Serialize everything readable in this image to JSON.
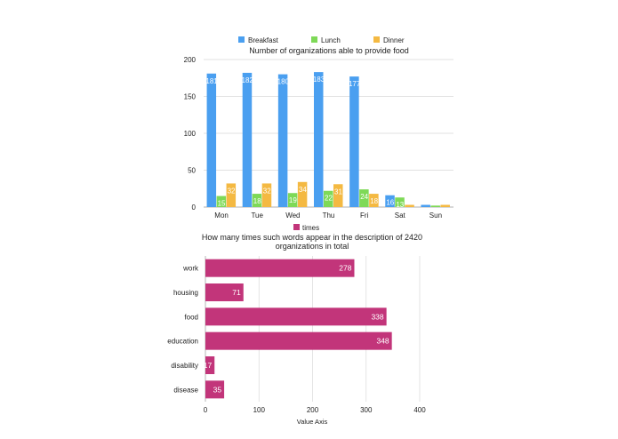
{
  "chart_data": [
    {
      "type": "bar",
      "orientation": "vertical",
      "title": "Number of organizations able to provide food",
      "categories": [
        "Mon",
        "Tue",
        "Wed",
        "Thu",
        "Fri",
        "Sat",
        "Sun"
      ],
      "series": [
        {
          "name": "Breakfast",
          "color": "#4a9ff0",
          "values": [
            181,
            182,
            180,
            183,
            177,
            16,
            3
          ],
          "labels": [
            "181",
            "182",
            "180",
            "183",
            "177",
            "16",
            ""
          ]
        },
        {
          "name": "Lunch",
          "color": "#7ed957",
          "values": [
            15,
            18,
            19,
            22,
            24,
            13,
            2
          ],
          "labels": [
            "15",
            "18",
            "19",
            "22",
            "24",
            "13",
            ""
          ]
        },
        {
          "name": "Dinner",
          "color": "#f4b942",
          "values": [
            32,
            32,
            34,
            31,
            18,
            3,
            3
          ],
          "labels": [
            "32",
            "32",
            "34",
            "31",
            "18",
            "",
            ""
          ]
        }
      ],
      "ylim": [
        0,
        200
      ],
      "yticks": [
        0,
        50,
        100,
        150,
        200
      ],
      "grid": true,
      "legend_position": "top"
    },
    {
      "type": "bar",
      "orientation": "horizontal",
      "title": "How many times such words appear in the description of 2420 organizations in total",
      "title_lines": [
        "How many times such words appear in the description of 2420",
        "organizations in total"
      ],
      "categories": [
        "work",
        "housing",
        "food",
        "education",
        "disability",
        "disease"
      ],
      "series": [
        {
          "name": "times",
          "color": "#c2357a",
          "values": [
            278,
            71,
            338,
            348,
            17,
            35
          ],
          "labels": [
            "278",
            "71",
            "338",
            "348",
            "17",
            "35"
          ]
        }
      ],
      "xlabel": "Value Axis",
      "xlim": [
        0,
        400
      ],
      "xticks": [
        0,
        100,
        200,
        300,
        400
      ],
      "grid": true,
      "legend_position": "top"
    }
  ]
}
